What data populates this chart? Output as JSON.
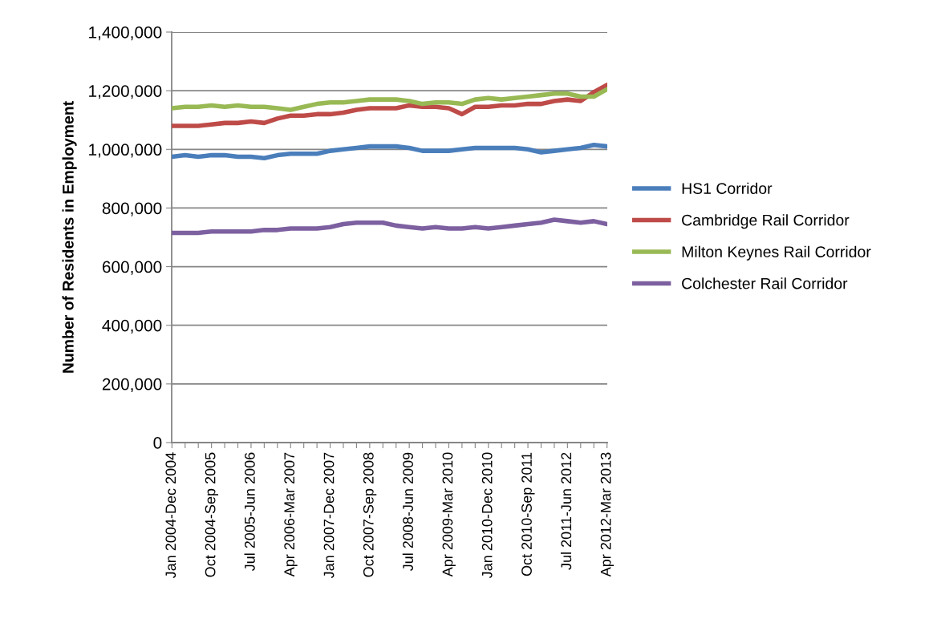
{
  "chart_data": {
    "type": "line",
    "ylabel": "Number of Residents in Employment",
    "categories": [
      "Jan 2004-Dec 2004",
      null,
      null,
      "Oct 2004-Sep 2005",
      null,
      null,
      "Jul 2005-Jun 2006",
      null,
      null,
      "Apr 2006-Mar 2007",
      null,
      null,
      "Jan 2007-Dec 2007",
      null,
      null,
      "Oct 2007-Sep 2008",
      null,
      null,
      "Jul 2008-Jun 2009",
      null,
      null,
      "Apr 2009-Mar 2010",
      null,
      null,
      "Jan 2010-Dec 2010",
      null,
      null,
      "Oct 2010-Sep 2011",
      null,
      null,
      "Jul 2011-Jun 2012",
      null,
      null,
      "Apr 2012-Mar 2013"
    ],
    "series": [
      {
        "name": "HS1 Corridor",
        "color": "#4a7ebb",
        "values": [
          975000,
          980000,
          975000,
          980000,
          980000,
          975000,
          975000,
          970000,
          980000,
          985000,
          985000,
          985000,
          995000,
          1000000,
          1005000,
          1010000,
          1010000,
          1010000,
          1005000,
          995000,
          995000,
          995000,
          1000000,
          1005000,
          1005000,
          1005000,
          1005000,
          1000000,
          990000,
          995000,
          1000000,
          1005000,
          1015000,
          1010000
        ]
      },
      {
        "name": "Cambridge Rail Corridor",
        "color": "#be4b48",
        "values": [
          1080000,
          1080000,
          1080000,
          1085000,
          1090000,
          1090000,
          1095000,
          1090000,
          1105000,
          1115000,
          1115000,
          1120000,
          1120000,
          1125000,
          1135000,
          1140000,
          1140000,
          1140000,
          1150000,
          1145000,
          1145000,
          1140000,
          1120000,
          1145000,
          1145000,
          1150000,
          1150000,
          1155000,
          1155000,
          1165000,
          1170000,
          1165000,
          1195000,
          1220000
        ]
      },
      {
        "name": "Milton Keynes Rail Corridor",
        "color": "#98b954",
        "values": [
          1140000,
          1145000,
          1145000,
          1150000,
          1145000,
          1150000,
          1145000,
          1145000,
          1140000,
          1135000,
          1145000,
          1155000,
          1160000,
          1160000,
          1165000,
          1170000,
          1170000,
          1170000,
          1165000,
          1155000,
          1160000,
          1160000,
          1155000,
          1170000,
          1175000,
          1170000,
          1175000,
          1180000,
          1185000,
          1190000,
          1190000,
          1180000,
          1180000,
          1205000
        ]
      },
      {
        "name": "Colchester Rail Corridor",
        "color": "#7d60a0",
        "values": [
          715000,
          715000,
          715000,
          720000,
          720000,
          720000,
          720000,
          725000,
          725000,
          730000,
          730000,
          730000,
          735000,
          745000,
          750000,
          750000,
          750000,
          740000,
          735000,
          730000,
          735000,
          730000,
          730000,
          735000,
          730000,
          735000,
          740000,
          745000,
          750000,
          760000,
          755000,
          750000,
          755000,
          745000
        ]
      }
    ],
    "ylim": [
      0,
      1400000
    ],
    "yticks": [
      {
        "value": 0,
        "label": "0"
      },
      {
        "value": 200000,
        "label": "200,000"
      },
      {
        "value": 400000,
        "label": "400,000"
      },
      {
        "value": 600000,
        "label": "600,000"
      },
      {
        "value": 800000,
        "label": "800,000"
      },
      {
        "value": 1000000,
        "label": "1,000,000"
      },
      {
        "value": 1200000,
        "label": "1,200,000"
      },
      {
        "value": 1400000,
        "label": "1,400,000"
      }
    ],
    "grid": "y",
    "legend": "right",
    "marker": "none",
    "line_style": "solid"
  }
}
